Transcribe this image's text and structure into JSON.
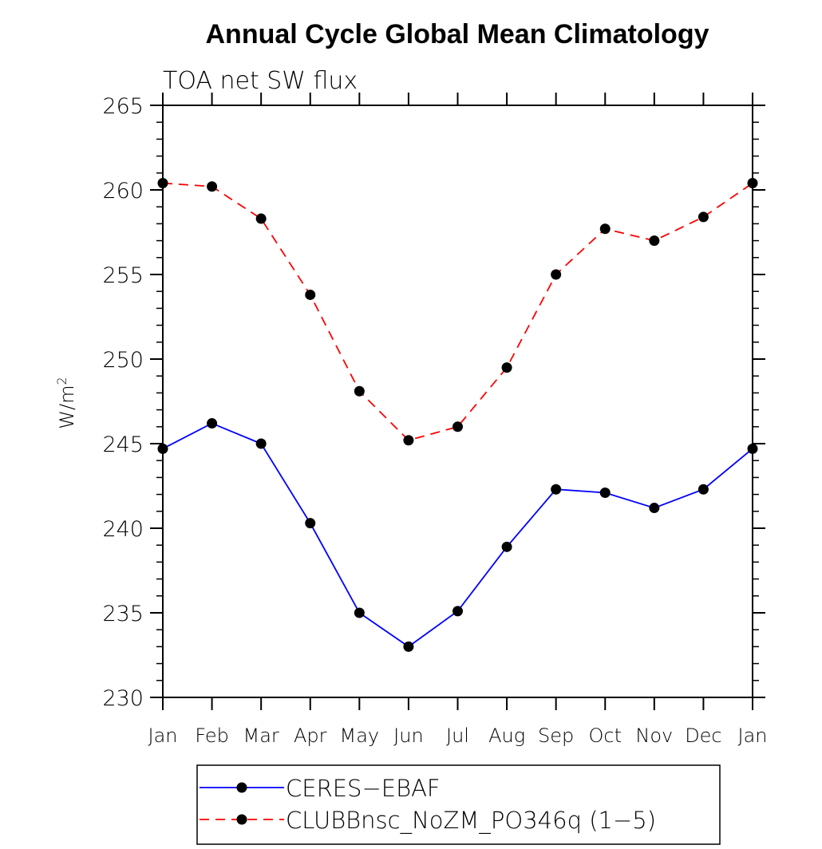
{
  "chart_data": {
    "type": "line",
    "title": "Annual Cycle Global Mean Climatology",
    "subtitle": "TOA net SW flux",
    "ylabel_base": "W/m",
    "ylabel_sup": "2",
    "xlabel": "",
    "categories": [
      "Jan",
      "Feb",
      "Mar",
      "Apr",
      "May",
      "Jun",
      "Jul",
      "Aug",
      "Sep",
      "Oct",
      "Nov",
      "Dec",
      "Jan"
    ],
    "ylim": [
      230,
      265
    ],
    "yticks": [
      230,
      235,
      240,
      245,
      250,
      255,
      260,
      265
    ],
    "grid": false,
    "legend_position": "bottom",
    "series": [
      {
        "name": "CERES−EBAF",
        "color": "#0000ff",
        "dash": "solid",
        "marker": "filled-circle",
        "values": [
          244.7,
          246.2,
          245.0,
          240.3,
          235.0,
          233.0,
          235.1,
          238.9,
          242.3,
          242.1,
          241.2,
          242.3,
          244.7
        ]
      },
      {
        "name": "CLUBBnsc_NoZM_PO346q (1−5)",
        "color": "#ff0000",
        "dash": "dashed",
        "marker": "filled-circle",
        "values": [
          260.4,
          260.2,
          258.3,
          253.8,
          248.1,
          245.2,
          246.0,
          249.5,
          255.0,
          257.7,
          257.0,
          258.4,
          260.4
        ]
      }
    ]
  }
}
